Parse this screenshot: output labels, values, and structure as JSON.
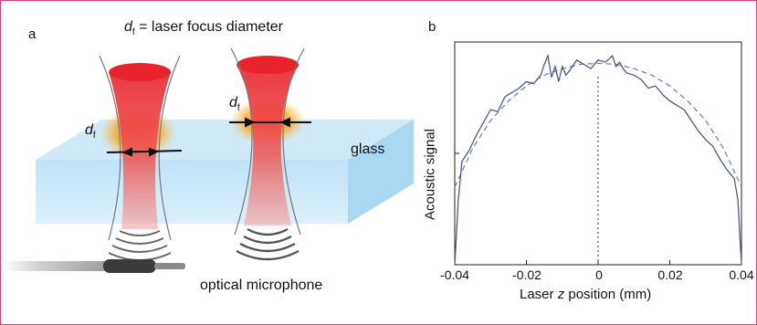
{
  "panel_a": {
    "label": "a",
    "caption_symbol": "d",
    "caption_sub": "f",
    "caption_text": "= laser focus diameter",
    "df_symbol": "d",
    "df_sub": "f",
    "glass_label": "glass",
    "microphone_label": "optical microphone",
    "colors": {
      "beam": "#e8232b",
      "glass_top": "#cfe9f7",
      "glass_front": "#a9d8f2",
      "heat": "#f8a51e",
      "microphone": "#3a3a3a"
    }
  },
  "panel_b": {
    "label": "b",
    "ylabel": "Acoustic signal",
    "xlabel_prefix": "Laser ",
    "xlabel_var": "z",
    "xlabel_suffix": " position (mm)",
    "xticks": [
      "-0.04",
      "-0.02",
      "0",
      "0.02",
      "0.04"
    ],
    "colors": {
      "measured": "#4a5a86",
      "fit": "#6d7ab8",
      "center": "#333333"
    }
  },
  "chart_data": {
    "type": "line",
    "xlabel": "Laser z position (mm)",
    "ylabel": "Acoustic signal",
    "xlim": [
      -0.04,
      0.04
    ],
    "xticks": [
      -0.04,
      -0.02,
      0,
      0.02,
      0.04
    ],
    "y_tick_labels_shown": false,
    "series": [
      {
        "style": "solid",
        "x": [
          -0.04,
          -0.039,
          -0.038,
          -0.036,
          -0.034,
          -0.032,
          -0.03,
          -0.028,
          -0.026,
          -0.024,
          -0.022,
          -0.02,
          -0.018,
          -0.016,
          -0.015,
          -0.014,
          -0.013,
          -0.012,
          -0.011,
          -0.01,
          -0.009,
          -0.008,
          -0.006,
          -0.004,
          -0.002,
          0,
          0.002,
          0.004,
          0.005,
          0.006,
          0.007,
          0.008,
          0.01,
          0.012,
          0.014,
          0.016,
          0.018,
          0.02,
          0.022,
          0.024,
          0.026,
          0.028,
          0.03,
          0.032,
          0.034,
          0.036,
          0.038,
          0.039,
          0.04
        ],
        "y": [
          0.0,
          0.3,
          0.48,
          0.53,
          0.6,
          0.66,
          0.72,
          0.71,
          0.78,
          0.8,
          0.82,
          0.85,
          0.84,
          0.88,
          0.93,
          0.97,
          0.87,
          0.92,
          0.85,
          0.92,
          0.88,
          0.9,
          0.95,
          0.93,
          0.91,
          0.95,
          0.94,
          0.97,
          0.92,
          0.94,
          0.91,
          0.89,
          0.88,
          0.86,
          0.82,
          0.83,
          0.79,
          0.76,
          0.74,
          0.72,
          0.67,
          0.62,
          0.58,
          0.55,
          0.49,
          0.44,
          0.4,
          0.3,
          0.0
        ]
      },
      {
        "style": "dashed",
        "x": [
          -0.04,
          -0.035,
          -0.03,
          -0.025,
          -0.02,
          -0.015,
          -0.01,
          -0.005,
          0,
          0.005,
          0.01,
          0.015,
          0.02,
          0.025,
          0.03,
          0.035,
          0.04
        ],
        "y": [
          0.36,
          0.54,
          0.67,
          0.76,
          0.83,
          0.88,
          0.91,
          0.93,
          0.935,
          0.93,
          0.91,
          0.88,
          0.83,
          0.76,
          0.67,
          0.54,
          0.36
        ]
      }
    ],
    "vline": 0
  }
}
